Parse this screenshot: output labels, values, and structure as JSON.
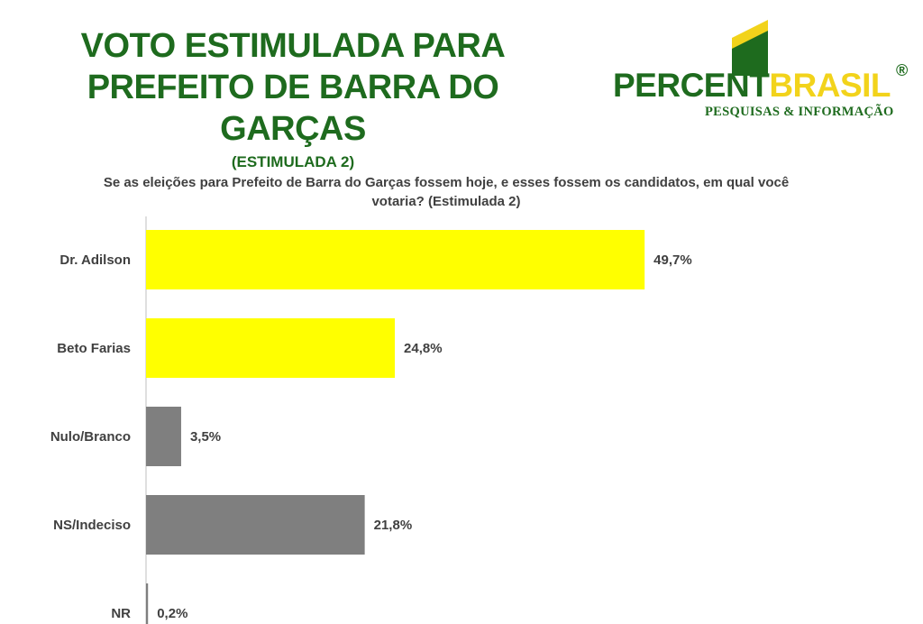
{
  "header": {
    "title_line1": "VOTO ESTIMULADA PARA",
    "title_line2": "PREFEITO DE BARRA DO GARÇAS",
    "subtitle": "(ESTIMULADA 2)"
  },
  "logo": {
    "brand_part1": "PERCENT",
    "brand_part2": "BRASIL",
    "registered": "®",
    "tagline": "PESQUISAS & INFORMAÇÃO"
  },
  "question": "Se as eleições para Prefeito de Barra do Garças fossem hoje, e esses fossem os  candidatos, em qual você votaria? (Estimulada 2)",
  "colors": {
    "candidate": "#ffff00",
    "other": "#7f7f7f",
    "title_green": "#1e6b1e",
    "logo_yellow": "#f2d31b"
  },
  "chart_data": {
    "type": "bar",
    "orientation": "horizontal",
    "title": "Se as eleições para Prefeito de Barra do Garças fossem hoje, e esses fossem os  candidatos, em qual você votaria? (Estimulada 2)",
    "categories": [
      "Dr. Adilson",
      "Beto Farias",
      "Nulo/Branco",
      "NS/Indeciso",
      "NR"
    ],
    "values": [
      49.7,
      24.8,
      3.5,
      21.8,
      0.2
    ],
    "labels": [
      "49,7%",
      "24,8%",
      "3,5%",
      "21,8%",
      "0,2%"
    ],
    "bar_colors": [
      "#ffff00",
      "#ffff00",
      "#7f7f7f",
      "#7f7f7f",
      "#7f7f7f"
    ],
    "xlim": [
      0,
      50
    ],
    "grid": false,
    "legend": "none"
  }
}
